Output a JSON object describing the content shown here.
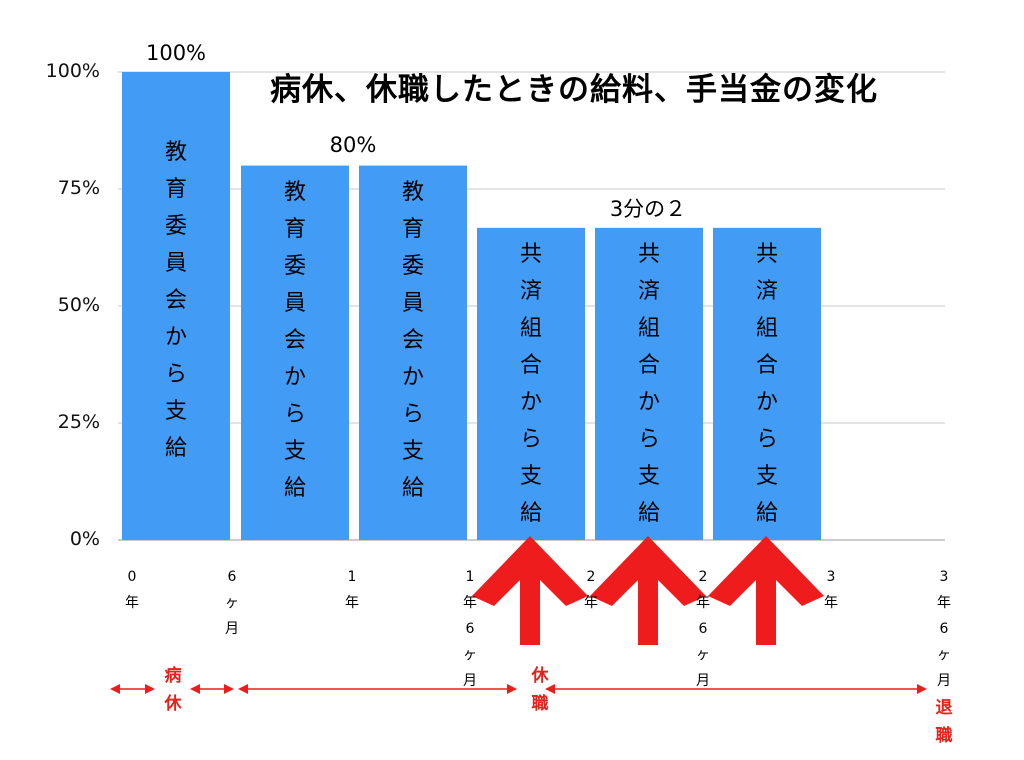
{
  "chart_data": {
    "type": "bar",
    "title": "病休、休職したときの給料、手当金の変化",
    "ylim": [
      0,
      100
    ],
    "y_ticks": [
      "0%",
      "25%",
      "50%",
      "75%",
      "100%"
    ],
    "grid": true,
    "bar_color": "#429bf5",
    "bars": [
      {
        "value": 100,
        "text": "教育委員会から支給"
      },
      {
        "value": 80,
        "text": "教育委員会から支給"
      },
      {
        "value": 80,
        "text": "教育委員会から支給"
      },
      {
        "value": 66.7,
        "text": "共済組合から支給"
      },
      {
        "value": 66.7,
        "text": "共済組合から支給"
      },
      {
        "value": 66.7,
        "text": "共済組合から支給"
      }
    ],
    "group_labels": [
      "100%",
      "80%",
      "3分の２"
    ],
    "x_ticks": [
      "0年",
      "6ヶ月",
      "1年",
      "1年6ヶ月",
      "2年",
      "2年6ヶ月",
      "3年",
      "3年6ヶ月"
    ],
    "annotations": {
      "sick_leave": "病休",
      "leave_of_absence": "休職",
      "retirement": "退職",
      "arrow_color": "#ee1c1c"
    }
  }
}
